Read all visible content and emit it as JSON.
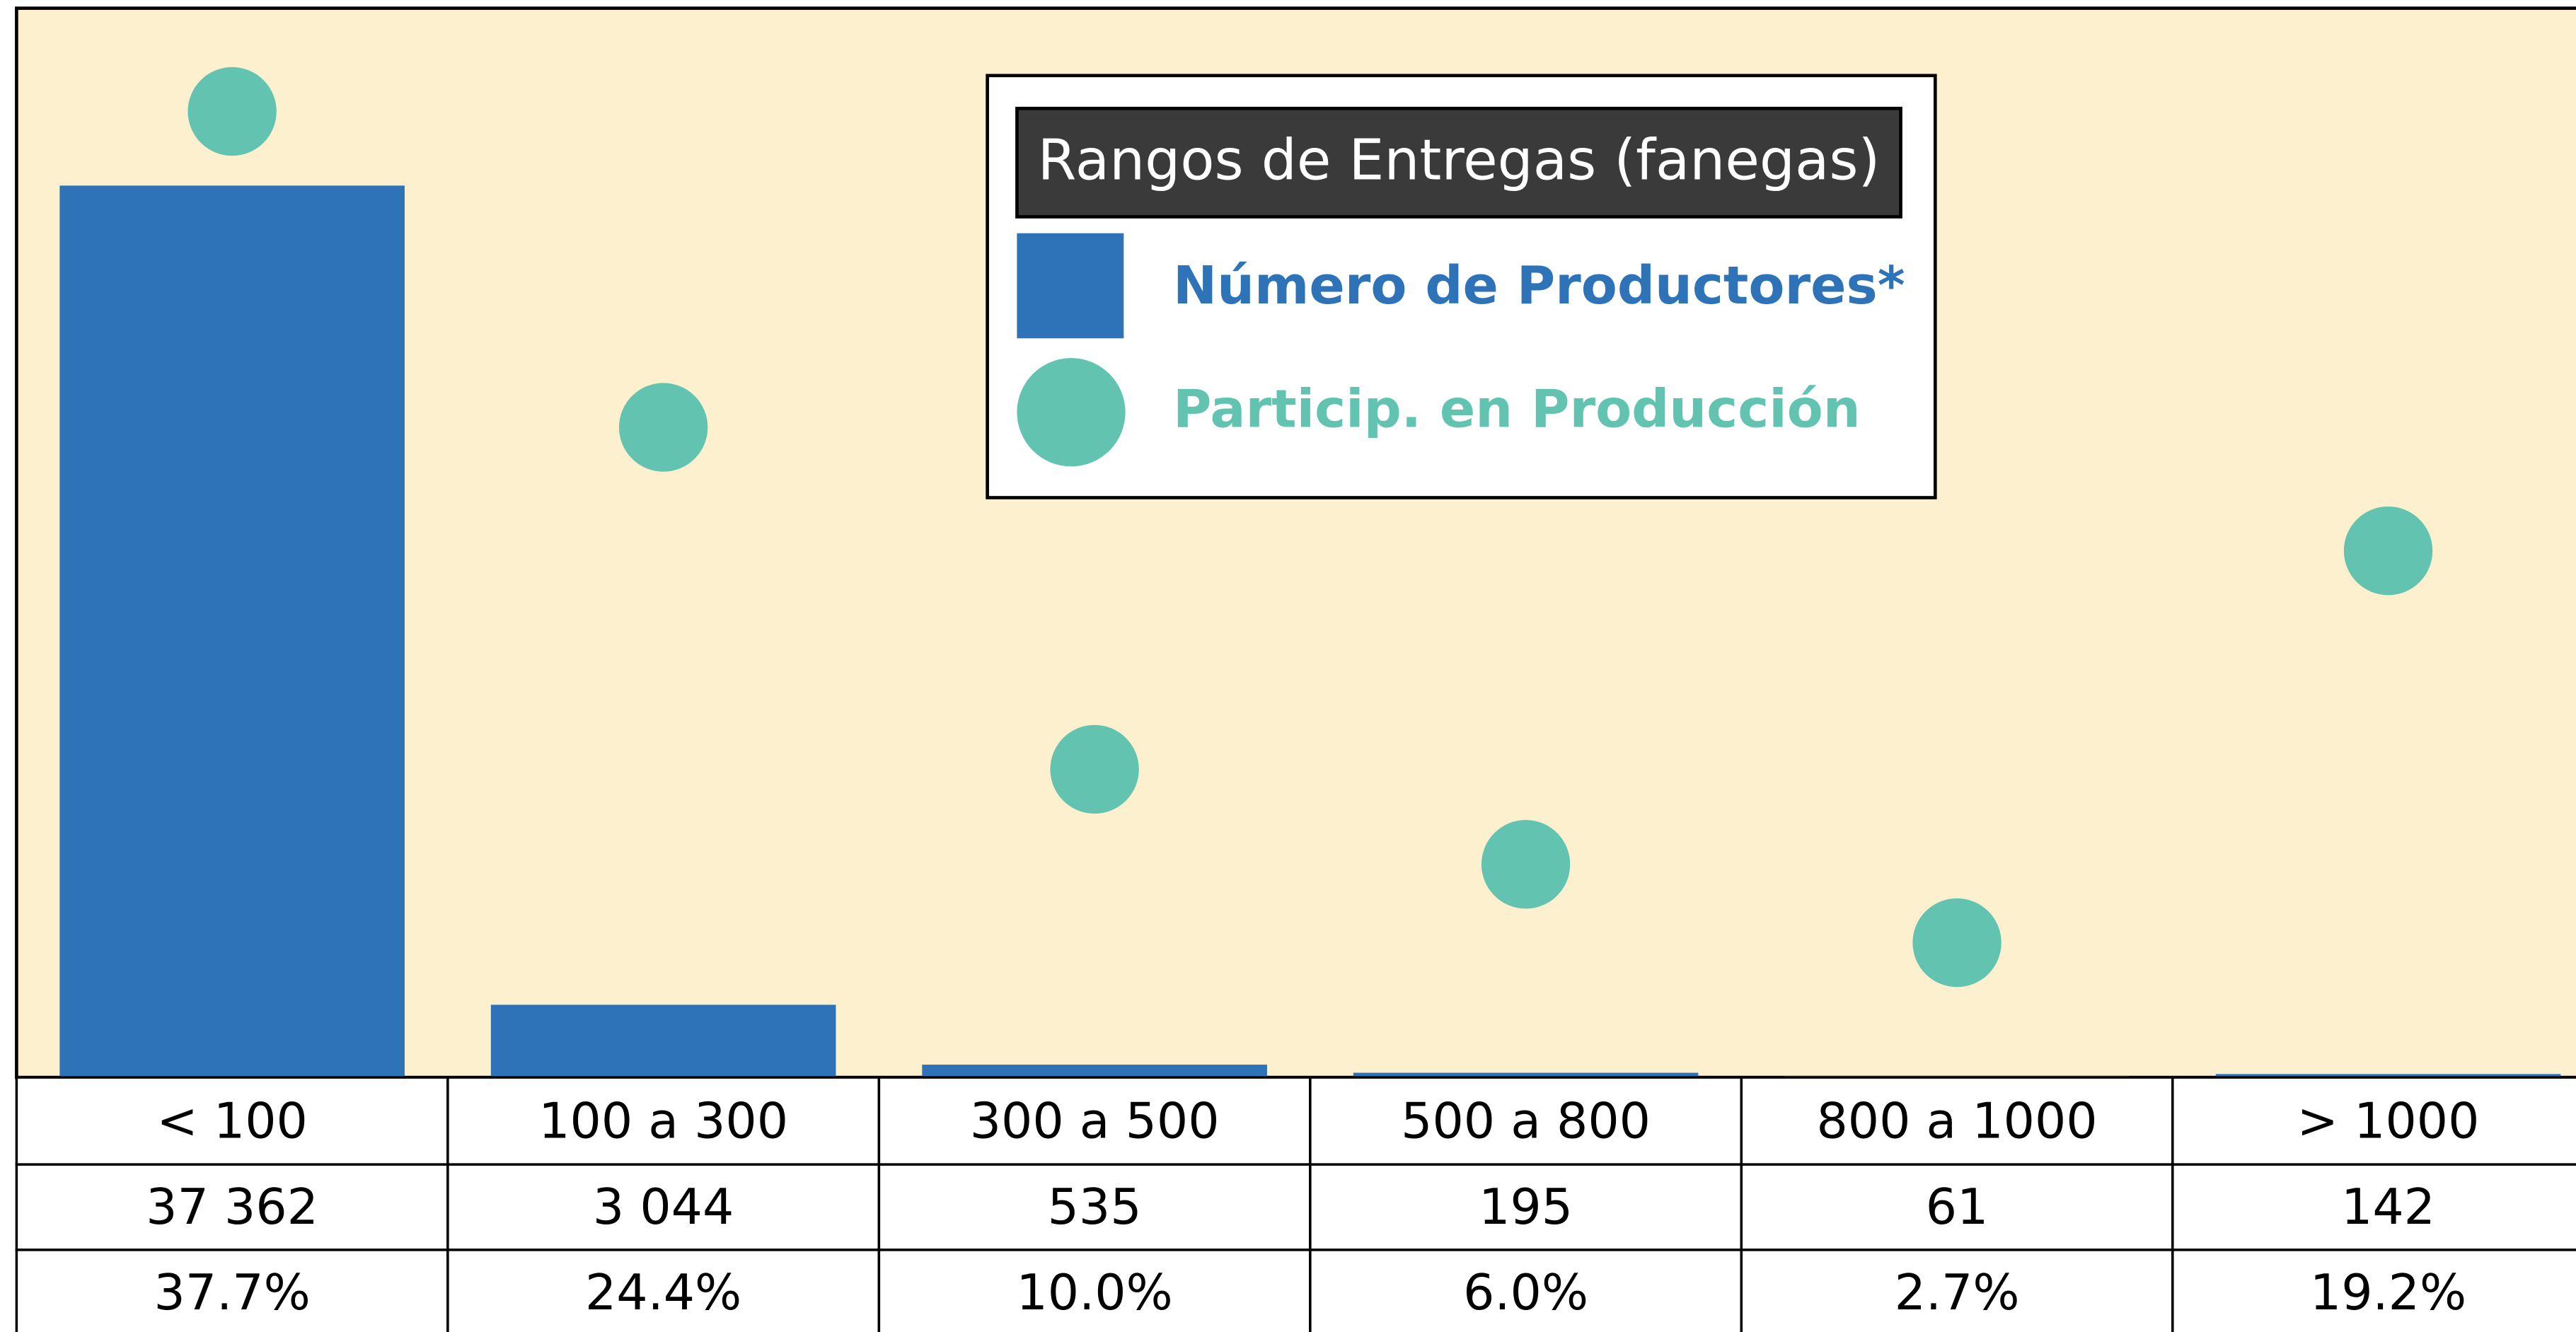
{
  "chart_data": {
    "type": "bar",
    "legend_title": "Rangos de Entregas (fanegas)",
    "categories": [
      "< 100",
      "100 a 300",
      "300 a 500",
      "500 a 800",
      "800 a 1000",
      "> 1000"
    ],
    "series": [
      {
        "name": "Número de Productores*",
        "type": "bar",
        "color": "#2e72b8",
        "values": [
          37362,
          3044,
          535,
          195,
          61,
          142
        ],
        "value_labels": [
          "37 362",
          "3 044",
          "535",
          "195",
          "61",
          "142"
        ]
      },
      {
        "name": "Particip. en Producción",
        "type": "scatter",
        "color": "#62c3b1",
        "values": [
          37.7,
          24.4,
          10.0,
          6.0,
          2.7,
          19.2
        ],
        "value_labels": [
          "37.7%",
          "24.4%",
          "10.0%",
          "6.0%",
          "2.7%",
          "19.2%"
        ]
      }
    ],
    "background": "#fdf0cf"
  }
}
